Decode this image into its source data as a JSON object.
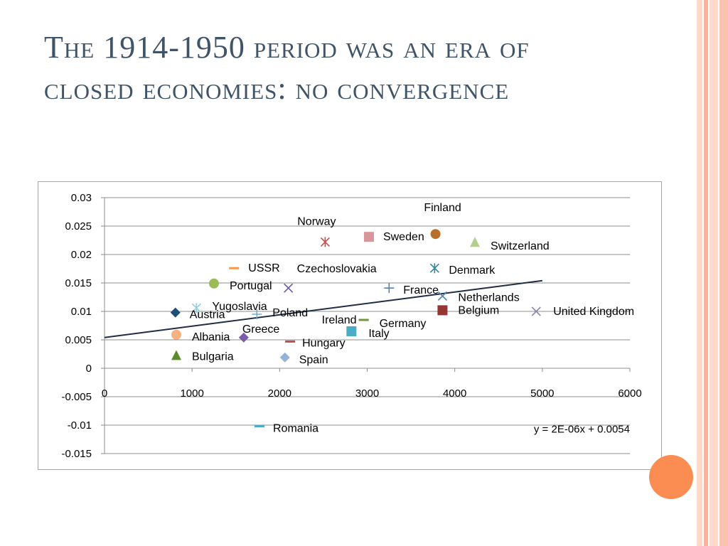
{
  "slide": {
    "title_line1": "The 1914-1950 period was an era of",
    "title_line2": "closed economies: no convergence"
  },
  "colors": {
    "title": "#3f5468",
    "accent_circle": "#fb8d52",
    "stripes": [
      "#fcd9c8",
      "#f7b49a",
      "#fcd9c8",
      "#f9c3ad"
    ]
  },
  "chart_data": {
    "type": "scatter",
    "title": "",
    "xlabel": "",
    "ylabel": "",
    "xlim": [
      0,
      6000
    ],
    "ylim": [
      -0.015,
      0.03
    ],
    "x_ticks": [
      "0",
      "1000",
      "2000",
      "3000",
      "4000",
      "5000",
      "6000"
    ],
    "y_ticks": [
      "0.03",
      "0.025",
      "0.02",
      "0.015",
      "0.01",
      "0.005",
      "0",
      "-0.005",
      "-0.01",
      "-0.015"
    ],
    "grid": "horizontal",
    "points": [
      {
        "label": "Norway",
        "x": 2520,
        "y": 0.0222,
        "marker": "asterisk",
        "color": "#c0504d"
      },
      {
        "label": "Finland",
        "x": 3780,
        "y": 0.0236,
        "marker": "circle",
        "color": "#b7702a"
      },
      {
        "label": "Sweden",
        "x": 3020,
        "y": 0.0231,
        "marker": "square",
        "color": "#d9969a"
      },
      {
        "label": "Switzerland",
        "x": 4230,
        "y": 0.0221,
        "marker": "triangle",
        "color": "#b3cf8c"
      },
      {
        "label": "USSR",
        "x": 1480,
        "y": 0.0176,
        "marker": "dash",
        "color": "#f79646"
      },
      {
        "label": "Czechoslovakia",
        "x": 2100,
        "y": 0.0141,
        "marker": "x",
        "color": "#6a5a99"
      },
      {
        "label": "Denmark",
        "x": 3770,
        "y": 0.0176,
        "marker": "asterisk",
        "color": "#31859c"
      },
      {
        "label": "Portugal",
        "x": 1250,
        "y": 0.0149,
        "marker": "circle",
        "color": "#9bbb59"
      },
      {
        "label": "France",
        "x": 3250,
        "y": 0.0141,
        "marker": "plus",
        "color": "#4f81bd"
      },
      {
        "label": "Netherlands",
        "x": 3860,
        "y": 0.0127,
        "marker": "x",
        "color": "#4f81bd"
      },
      {
        "label": "Yugoslavia",
        "x": 1050,
        "y": 0.0106,
        "marker": "asterisk",
        "color": "#93cddd"
      },
      {
        "label": "Austria",
        "x": 810,
        "y": 0.0098,
        "marker": "diamond",
        "color": "#1f4e79"
      },
      {
        "label": "Poland",
        "x": 1740,
        "y": 0.0095,
        "marker": "plus",
        "color": "#6fa8dc"
      },
      {
        "label": "Belgium",
        "x": 3860,
        "y": 0.0102,
        "marker": "square",
        "color": "#943634"
      },
      {
        "label": "United Kingdom",
        "x": 4930,
        "y": 0.01,
        "marker": "x",
        "color": "#8e86ae"
      },
      {
        "label": "Ireland",
        "x": 2960,
        "y": 0.0085,
        "marker": "dash",
        "color": "#77933c"
      },
      {
        "label": "Germany",
        "x": 2960,
        "y": 0.0085,
        "marker": "dash",
        "color": "#77933c"
      },
      {
        "label": "Greece",
        "x": 1590,
        "y": 0.0054,
        "marker": "diamond",
        "color": "#7b5ea7"
      },
      {
        "label": "Albania",
        "x": 820,
        "y": 0.0059,
        "marker": "circle",
        "color": "#f4b183"
      },
      {
        "label": "Italy",
        "x": 2820,
        "y": 0.0065,
        "marker": "square",
        "color": "#4bacc6"
      },
      {
        "label": "Hungary",
        "x": 2120,
        "y": 0.0047,
        "marker": "dash",
        "color": "#c0504d"
      },
      {
        "label": "Bulgaria",
        "x": 820,
        "y": 0.0022,
        "marker": "triangle",
        "color": "#5e8a2e"
      },
      {
        "label": "Spain",
        "x": 2060,
        "y": 0.0019,
        "marker": "diamond",
        "color": "#95b3d7"
      },
      {
        "label": "Romania",
        "x": 1770,
        "y": -0.0102,
        "marker": "dash",
        "color": "#4bacc6"
      }
    ],
    "trendline": {
      "slope": 2e-06,
      "intercept": 0.0054,
      "x_range": [
        0,
        5000
      ],
      "color": "#1f2d45"
    },
    "annotations": [
      "y = 2E-06x + 0.0054"
    ]
  }
}
